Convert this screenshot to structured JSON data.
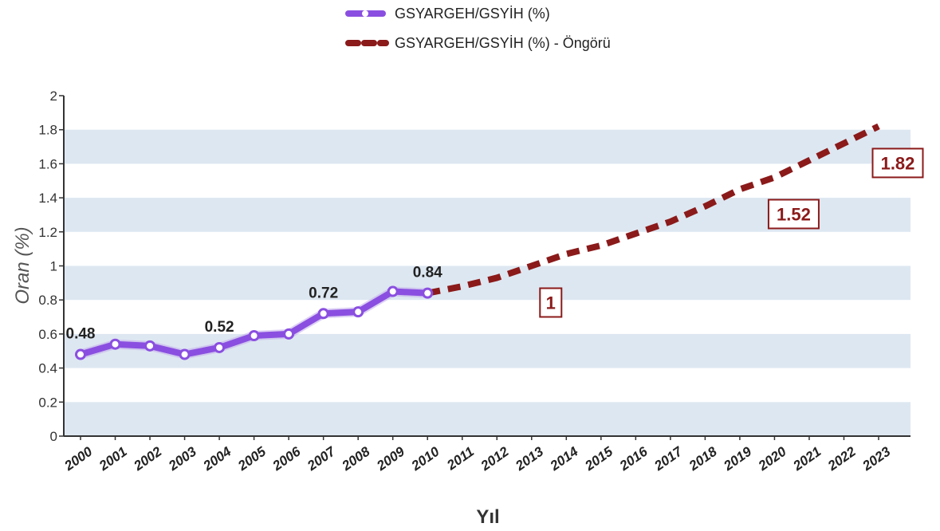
{
  "chart_data": {
    "type": "line",
    "x": [
      "2000",
      "2001",
      "2002",
      "2003",
      "2004",
      "2005",
      "2006",
      "2007",
      "2008",
      "2009",
      "2010",
      "2011",
      "2012",
      "2013",
      "2014",
      "2015",
      "2016",
      "2017",
      "2018",
      "2019",
      "2020",
      "2021",
      "2022",
      "2023"
    ],
    "xlabel": "Yıl",
    "ylabel": "Oran (%)",
    "ylim": [
      0,
      2
    ],
    "yticks": [
      "0",
      "0.2",
      "0.4",
      "0.6",
      "0.8",
      "1",
      "1.2",
      "1.4",
      "1.6",
      "1.8",
      "2"
    ],
    "grid": "alternating horizontal bands",
    "legend_position": "top-center",
    "series": [
      {
        "name": "GSYARGEH/GSYİH (%)",
        "color": "#8a4fe0",
        "style": "solid-with-markers",
        "x": [
          "2000",
          "2001",
          "2002",
          "2003",
          "2004",
          "2005",
          "2006",
          "2007",
          "2008",
          "2009",
          "2010"
        ],
        "values": [
          0.48,
          0.54,
          0.53,
          0.48,
          0.52,
          0.59,
          0.6,
          0.72,
          0.73,
          0.85,
          0.84
        ]
      },
      {
        "name": "GSYARGEH/GSYİH (%) - Öngörü",
        "color": "#8b1a1a",
        "style": "dashed",
        "x": [
          "2010",
          "2011",
          "2012",
          "2013",
          "2014",
          "2015",
          "2016",
          "2017",
          "2018",
          "2019",
          "2020",
          "2021",
          "2022",
          "2023"
        ],
        "values": [
          0.84,
          0.88,
          0.93,
          1.0,
          1.07,
          1.12,
          1.19,
          1.26,
          1.35,
          1.45,
          1.52,
          1.62,
          1.72,
          1.82
        ]
      }
    ],
    "data_labels": [
      {
        "x": "2000",
        "text": "0.48",
        "series": 0
      },
      {
        "x": "2004",
        "text": "0.52",
        "series": 0
      },
      {
        "x": "2007",
        "text": "0.72",
        "series": 0
      },
      {
        "x": "2010",
        "text": "0.84",
        "series": 0
      }
    ],
    "forecast_labels": [
      {
        "x": "2013",
        "text": "1"
      },
      {
        "x": "2020",
        "text": "1.52"
      },
      {
        "x": "2023",
        "text": "1.82"
      }
    ],
    "colors": {
      "band": "#dde7f1",
      "axis": "#333333"
    }
  }
}
